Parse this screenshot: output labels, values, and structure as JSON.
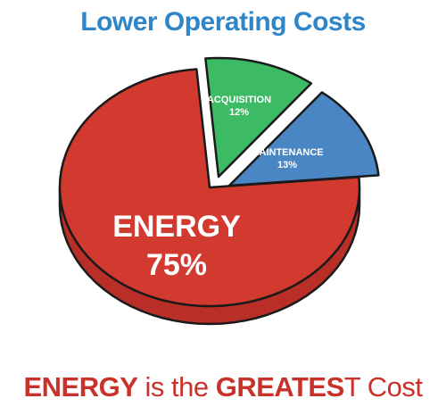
{
  "title": "Lower Operating Costs",
  "colors": {
    "title": "#2e86c8",
    "energy": "#d23a2f",
    "energy_side": "#b92e26",
    "acquisition": "#3dbb64",
    "maintenance": "#4a86c4",
    "outline": "#1a1a1a",
    "caption": "#c9322a"
  },
  "chart_data": {
    "type": "pie",
    "slices": [
      {
        "label": "ENERGY",
        "value_label": "75%",
        "value": 75
      },
      {
        "label": "ACQUISITION",
        "value_label": "12%",
        "value": 12
      },
      {
        "label": "MAINTENANCE",
        "value_label": "13%",
        "value": 13
      }
    ]
  },
  "caption": {
    "part1": "ENERGY",
    "part2": " is the ",
    "part3": "GREATES",
    "part4": "T Cost"
  }
}
